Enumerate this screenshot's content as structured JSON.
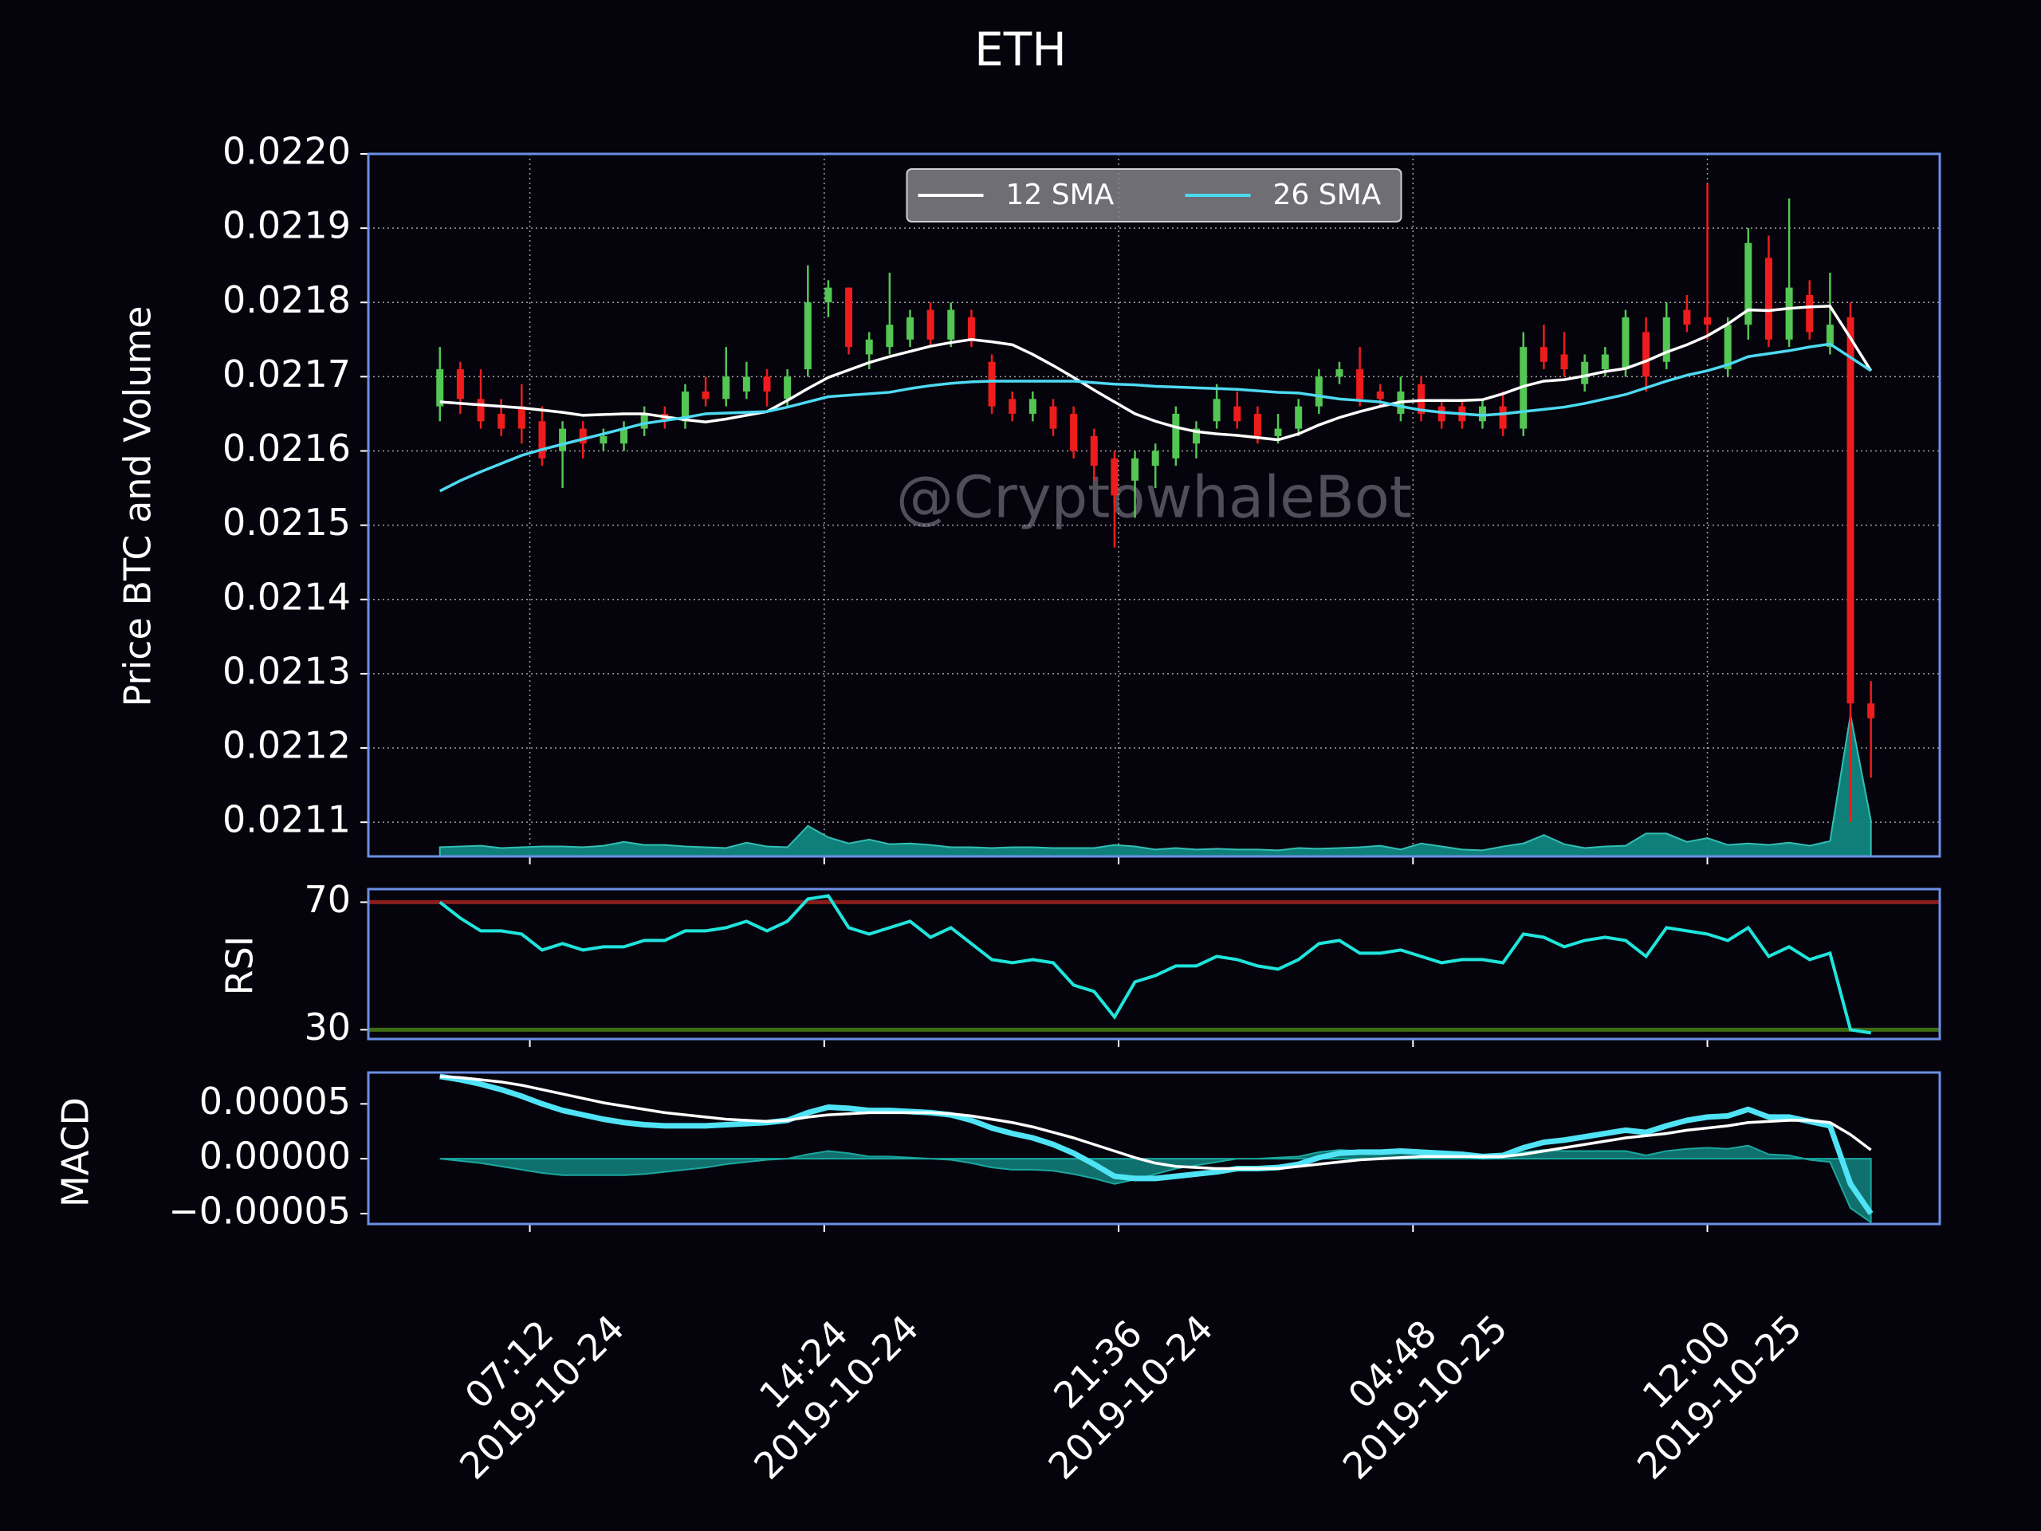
{
  "chart_data": {
    "type": "candlestick",
    "title": "ETH",
    "x": [
      "2019-10-24 05:00",
      "2019-10-24 05:30",
      "2019-10-24 06:00",
      "2019-10-24 06:30",
      "2019-10-24 07:00",
      "2019-10-24 07:30",
      "2019-10-24 08:00",
      "2019-10-24 08:30",
      "2019-10-24 09:00",
      "2019-10-24 09:30",
      "2019-10-24 10:00",
      "2019-10-24 10:30",
      "2019-10-24 11:00",
      "2019-10-24 11:30",
      "2019-10-24 12:00",
      "2019-10-24 12:30",
      "2019-10-24 13:00",
      "2019-10-24 13:30",
      "2019-10-24 14:00",
      "2019-10-24 14:30",
      "2019-10-24 15:00",
      "2019-10-24 15:30",
      "2019-10-24 16:00",
      "2019-10-24 16:30",
      "2019-10-24 17:00",
      "2019-10-24 17:30",
      "2019-10-24 18:00",
      "2019-10-24 18:30",
      "2019-10-24 19:00",
      "2019-10-24 19:30",
      "2019-10-24 20:00",
      "2019-10-24 20:30",
      "2019-10-24 21:00",
      "2019-10-24 21:30",
      "2019-10-24 22:00",
      "2019-10-24 22:30",
      "2019-10-24 23:00",
      "2019-10-24 23:30",
      "2019-10-25 00:00",
      "2019-10-25 00:30",
      "2019-10-25 01:00",
      "2019-10-25 01:30",
      "2019-10-25 02:00",
      "2019-10-25 02:30",
      "2019-10-25 03:00",
      "2019-10-25 03:30",
      "2019-10-25 04:00",
      "2019-10-25 04:30",
      "2019-10-25 05:00",
      "2019-10-25 05:30",
      "2019-10-25 06:00",
      "2019-10-25 06:30",
      "2019-10-25 07:00",
      "2019-10-25 07:30",
      "2019-10-25 08:00",
      "2019-10-25 08:30",
      "2019-10-25 09:00",
      "2019-10-25 09:30",
      "2019-10-25 10:00",
      "2019-10-25 10:30",
      "2019-10-25 11:00",
      "2019-10-25 11:30",
      "2019-10-25 12:00",
      "2019-10-25 12:30",
      "2019-10-25 13:00",
      "2019-10-25 13:30",
      "2019-10-25 14:00",
      "2019-10-25 14:30",
      "2019-10-25 15:00",
      "2019-10-25 15:30",
      "2019-10-25 16:00"
    ],
    "xlim": [
      "2019-10-24 03:15",
      "2019-10-25 17:41"
    ],
    "xticks": [
      {
        "value": "2019-10-24 07:12",
        "label": [
          "07:12",
          "2019-10-24"
        ]
      },
      {
        "value": "2019-10-24 14:24",
        "label": [
          "14:24",
          "2019-10-24"
        ]
      },
      {
        "value": "2019-10-24 21:36",
        "label": [
          "21:36",
          "2019-10-24"
        ]
      },
      {
        "value": "2019-10-25 04:48",
        "label": [
          "04:48",
          "2019-10-25"
        ]
      },
      {
        "value": "2019-10-25 12:00",
        "label": [
          "12:00",
          "2019-10-25"
        ]
      }
    ],
    "price": {
      "y_label": "Price BTC and Volume",
      "ylim": [
        0.021054,
        0.022
      ],
      "yticks": [
        {
          "value": 0.022,
          "label": "0.0220"
        },
        {
          "value": 0.0219,
          "label": "0.0219"
        },
        {
          "value": 0.0218,
          "label": "0.0218"
        },
        {
          "value": 0.0217,
          "label": "0.0217"
        },
        {
          "value": 0.0216,
          "label": "0.0216"
        },
        {
          "value": 0.0215,
          "label": "0.0215"
        },
        {
          "value": 0.0214,
          "label": "0.0214"
        },
        {
          "value": 0.0213,
          "label": "0.0213"
        },
        {
          "value": 0.0212,
          "label": "0.0212"
        },
        {
          "value": 0.0211,
          "label": "0.0211"
        }
      ],
      "grid": true,
      "up_color": "#53c653",
      "down_color": "#ee1c1c",
      "open": [
        0.02166,
        0.02171,
        0.02167,
        0.02165,
        0.02166,
        0.02164,
        0.0216,
        0.02163,
        0.02161,
        0.02161,
        0.02163,
        0.02165,
        0.02164,
        0.02168,
        0.02167,
        0.02168,
        0.0217,
        0.02167,
        0.02171,
        0.0218,
        0.02182,
        0.02173,
        0.02174,
        0.02175,
        0.02179,
        0.02175,
        0.02178,
        0.02172,
        0.02167,
        0.02165,
        0.02166,
        0.02165,
        0.02162,
        0.02159,
        0.02156,
        0.02158,
        0.02159,
        0.02161,
        0.02164,
        0.02166,
        0.02165,
        0.02162,
        0.02163,
        0.02166,
        0.0217,
        0.02171,
        0.02168,
        0.02165,
        0.02169,
        0.02166,
        0.02166,
        0.02164,
        0.02166,
        0.02163,
        0.02174,
        0.02173,
        0.02169,
        0.02171,
        0.02171,
        0.02176,
        0.02172,
        0.02179,
        0.02178,
        0.02171,
        0.02177,
        0.02186,
        0.02175,
        0.02181,
        0.02174,
        0.02178,
        0.02126
      ],
      "high": [
        0.02174,
        0.02172,
        0.02171,
        0.02167,
        0.02169,
        0.02166,
        0.02164,
        0.02164,
        0.02163,
        0.02164,
        0.02166,
        0.02166,
        0.02169,
        0.0217,
        0.02174,
        0.02172,
        0.02171,
        0.02171,
        0.02185,
        0.02183,
        0.02182,
        0.02176,
        0.02184,
        0.02179,
        0.0218,
        0.0218,
        0.02179,
        0.02173,
        0.02168,
        0.02168,
        0.02167,
        0.02166,
        0.02163,
        0.0216,
        0.0216,
        0.02161,
        0.02166,
        0.02164,
        0.02169,
        0.02168,
        0.02166,
        0.02165,
        0.02167,
        0.02171,
        0.02172,
        0.02174,
        0.02169,
        0.0217,
        0.0217,
        0.02167,
        0.02167,
        0.02167,
        0.02168,
        0.02176,
        0.02177,
        0.02176,
        0.02173,
        0.02174,
        0.02179,
        0.02178,
        0.0218,
        0.02181,
        0.02196,
        0.02178,
        0.0219,
        0.02189,
        0.02194,
        0.02183,
        0.02184,
        0.0218,
        0.02129
      ],
      "low": [
        0.02164,
        0.02165,
        0.02163,
        0.02162,
        0.02161,
        0.02158,
        0.02155,
        0.02159,
        0.0216,
        0.0216,
        0.02162,
        0.02163,
        0.02163,
        0.02166,
        0.02166,
        0.02167,
        0.02166,
        0.02166,
        0.0217,
        0.02178,
        0.02173,
        0.02171,
        0.02173,
        0.02174,
        0.02174,
        0.02174,
        0.02174,
        0.02165,
        0.02164,
        0.02164,
        0.02162,
        0.02159,
        0.02156,
        0.02147,
        0.02151,
        0.02155,
        0.02158,
        0.02159,
        0.02163,
        0.02163,
        0.02161,
        0.02161,
        0.02162,
        0.02165,
        0.02169,
        0.02166,
        0.02166,
        0.02164,
        0.02164,
        0.02163,
        0.02163,
        0.02163,
        0.02162,
        0.02162,
        0.02171,
        0.0217,
        0.02168,
        0.0217,
        0.0217,
        0.02168,
        0.02171,
        0.02176,
        0.02175,
        0.0217,
        0.02175,
        0.02174,
        0.02174,
        0.02175,
        0.02173,
        0.0211,
        0.02116
      ],
      "close": [
        0.02171,
        0.02167,
        0.02164,
        0.02163,
        0.02163,
        0.02159,
        0.02163,
        0.02161,
        0.02162,
        0.02163,
        0.02165,
        0.02164,
        0.02168,
        0.02167,
        0.0217,
        0.0217,
        0.02168,
        0.0217,
        0.0218,
        0.02182,
        0.02174,
        0.02175,
        0.02177,
        0.02178,
        0.02175,
        0.02179,
        0.02175,
        0.02166,
        0.02165,
        0.02167,
        0.02163,
        0.0216,
        0.02158,
        0.02154,
        0.02159,
        0.0216,
        0.02165,
        0.02163,
        0.02167,
        0.02164,
        0.02162,
        0.02163,
        0.02166,
        0.0217,
        0.02171,
        0.02167,
        0.02167,
        0.02168,
        0.02165,
        0.02164,
        0.02164,
        0.02166,
        0.02163,
        0.02174,
        0.02172,
        0.02171,
        0.02172,
        0.02173,
        0.02178,
        0.0217,
        0.02178,
        0.02177,
        0.02177,
        0.02177,
        0.02188,
        0.02175,
        0.02182,
        0.02176,
        0.02177,
        0.02126,
        0.02124
      ],
      "series": [
        {
          "name": "12 SMA",
          "color": "#ffffff",
          "values": [
            0.021666,
            0.021664,
            0.021662,
            0.02166,
            0.021658,
            0.021655,
            0.021652,
            0.021648,
            0.021649,
            0.02165,
            0.02165,
            0.021646,
            0.021642,
            0.021639,
            0.021643,
            0.021648,
            0.021653,
            0.021668,
            0.021684,
            0.021699,
            0.021709,
            0.021719,
            0.021727,
            0.021734,
            0.021741,
            0.021746,
            0.02175,
            0.021747,
            0.021743,
            0.02173,
            0.021715,
            0.021699,
            0.021682,
            0.021666,
            0.02165,
            0.02164,
            0.021632,
            0.021626,
            0.021623,
            0.021621,
            0.021618,
            0.021615,
            0.021623,
            0.021635,
            0.021645,
            0.021653,
            0.02166,
            0.021666,
            0.021668,
            0.021668,
            0.021668,
            0.021669,
            0.021677,
            0.021687,
            0.021694,
            0.021696,
            0.021701,
            0.021707,
            0.021711,
            0.021721,
            0.021733,
            0.021743,
            0.021755,
            0.021771,
            0.02179,
            0.021789,
            0.021792,
            0.021794,
            0.021795,
            0.021752,
            0.021708
          ]
        },
        {
          "name": "26 SMA",
          "color": "#4ed9f2",
          "values": [
            0.021546,
            0.02156,
            0.021572,
            0.021583,
            0.021594,
            0.021602,
            0.021609,
            0.021616,
            0.021623,
            0.02163,
            0.021637,
            0.021641,
            0.021645,
            0.02165,
            0.021651,
            0.021652,
            0.021653,
            0.021659,
            0.021666,
            0.021673,
            0.021675,
            0.021677,
            0.021679,
            0.021684,
            0.021688,
            0.021691,
            0.021693,
            0.021694,
            0.021694,
            0.021694,
            0.021694,
            0.021694,
            0.021692,
            0.02169,
            0.021689,
            0.021687,
            0.021686,
            0.021685,
            0.021684,
            0.021683,
            0.021681,
            0.021679,
            0.021678,
            0.021674,
            0.02167,
            0.021668,
            0.021666,
            0.02166,
            0.021655,
            0.021652,
            0.02165,
            0.021648,
            0.02165,
            0.021653,
            0.021656,
            0.021659,
            0.021664,
            0.02167,
            0.021676,
            0.021685,
            0.021694,
            0.021702,
            0.021708,
            0.021716,
            0.021727,
            0.021731,
            0.021735,
            0.02174,
            0.021744,
            0.021726,
            0.021708
          ]
        }
      ],
      "legend": "upper center",
      "volume": {
        "color": "#10877f",
        "y2lim": [
          0,
          92
        ],
        "values": [
          1.2,
          1.3,
          1.4,
          1.1,
          1.2,
          1.3,
          1.3,
          1.2,
          1.4,
          1.9,
          1.5,
          1.5,
          1.3,
          1.2,
          1.1,
          1.8,
          1.3,
          1.2,
          4.0,
          2.5,
          1.7,
          2.2,
          1.6,
          1.7,
          1.5,
          1.2,
          1.2,
          1.1,
          1.2,
          1.2,
          1.1,
          1.1,
          1.1,
          1.5,
          1.3,
          0.9,
          1.1,
          0.9,
          1.0,
          0.9,
          0.9,
          0.8,
          1.1,
          1.0,
          1.1,
          1.2,
          1.4,
          0.9,
          1.7,
          1.3,
          0.9,
          0.8,
          1.3,
          1.7,
          2.8,
          1.6,
          1.1,
          1.3,
          1.4,
          3.0,
          3.0,
          1.9,
          2.4,
          1.5,
          1.7,
          1.5,
          1.8,
          1.4,
          2.0,
          18.5,
          4.7
        ]
      },
      "watermark": "@CryptowhaleBot"
    },
    "rsi": {
      "y_label": "RSI",
      "ylim": [
        27.1,
        74.1
      ],
      "yticks": [
        70,
        30
      ],
      "levels": [
        {
          "value": 70,
          "color": "#8b1d1d"
        },
        {
          "value": 30,
          "color": "#3d6b14"
        }
      ],
      "series": [
        {
          "color": "#1fe5dc",
          "values": [
            70,
            65,
            61,
            61,
            60,
            55,
            57,
            55,
            56,
            56,
            58,
            58,
            61,
            61,
            62,
            64,
            61,
            64,
            71,
            72,
            62,
            60,
            62,
            64,
            59,
            62,
            57,
            52,
            51,
            52,
            51,
            44,
            42,
            34,
            45,
            47,
            50,
            50,
            53,
            52,
            50,
            49,
            52,
            57,
            58,
            54,
            54,
            55,
            53,
            51,
            52,
            52,
            51,
            60,
            59,
            56,
            58,
            59,
            58,
            53,
            62,
            61,
            60,
            58,
            62,
            53,
            56,
            52,
            54,
            30,
            29
          ]
        }
      ]
    },
    "macd": {
      "y_label": "MACD",
      "ylim": [
        -5.95e-05,
        7.86e-05
      ],
      "yticks": [
        {
          "value": 5e-05,
          "label": "0.00005"
        },
        {
          "value": 0,
          "label": "0.00000"
        },
        {
          "value": -5e-05,
          "label": "−0.00005"
        }
      ],
      "series": [
        {
          "color": "#4fe3f5",
          "values": [
            7.5e-05,
            7.2e-05,
            6.8e-05,
            6.3e-05,
            5.7e-05,
            5e-05,
            4.4e-05,
            4e-05,
            3.6e-05,
            3.3e-05,
            3.1e-05,
            3e-05,
            3e-05,
            3e-05,
            3.1e-05,
            3.2e-05,
            3.3e-05,
            3.5e-05,
            4.2e-05,
            4.7e-05,
            4.6e-05,
            4.4e-05,
            4.4e-05,
            4.3e-05,
            4.2e-05,
            4e-05,
            3.5e-05,
            2.8e-05,
            2.3e-05,
            1.9e-05,
            1.3e-05,
            5e-06,
            -5e-06,
            -1.6e-05,
            -1.8e-05,
            -1.8e-05,
            -1.6e-05,
            -1.4e-05,
            -1.2e-05,
            -9e-06,
            -9e-06,
            -8e-06,
            -5e-06,
            1e-06,
            5e-06,
            6e-06,
            6e-06,
            7e-06,
            6e-06,
            5e-06,
            4e-06,
            2e-06,
            3e-06,
            1e-05,
            1.5e-05,
            1.7e-05,
            2e-05,
            2.3e-05,
            2.6e-05,
            2.4e-05,
            3e-05,
            3.5e-05,
            3.8e-05,
            3.9e-05,
            4.5e-05,
            3.8e-05,
            3.8e-05,
            3.4e-05,
            3e-05,
            -2.3e-05,
            -5e-05
          ]
        },
        {
          "color": "#ffffff",
          "values": [
            7.5e-05,
            7.4e-05,
            7.2e-05,
            7e-05,
            6.7e-05,
            6.3e-05,
            5.9e-05,
            5.5e-05,
            5.1e-05,
            4.8e-05,
            4.5e-05,
            4.2e-05,
            4e-05,
            3.8e-05,
            3.6e-05,
            3.5e-05,
            3.4e-05,
            3.5e-05,
            3.8e-05,
            4e-05,
            4.1e-05,
            4.2e-05,
            4.2e-05,
            4.2e-05,
            4.2e-05,
            4.1e-05,
            3.9e-05,
            3.6e-05,
            3.3e-05,
            2.9e-05,
            2.4e-05,
            1.9e-05,
            1.3e-05,
            7e-06,
            1e-06,
            -4e-06,
            -7e-06,
            -8e-06,
            -9e-06,
            -9e-06,
            -9e-06,
            -9e-06,
            -7e-06,
            -5e-06,
            -3e-06,
            -1e-06,
            0,
            1e-06,
            2e-06,
            2e-06,
            2e-06,
            2e-06,
            2e-06,
            4e-06,
            7e-06,
            1e-05,
            1.3e-05,
            1.6e-05,
            1.9e-05,
            2.1e-05,
            2.3e-05,
            2.6e-05,
            2.8e-05,
            3e-05,
            3.3e-05,
            3.4e-05,
            3.5e-05,
            3.5e-05,
            3.3e-05,
            2.2e-05,
            8e-06
          ]
        }
      ],
      "histogram": {
        "color": "#128c86",
        "values": [
          0,
          -2e-06,
          -4e-06,
          -7e-06,
          -1e-05,
          -1.3e-05,
          -1.5e-05,
          -1.5e-05,
          -1.5e-05,
          -1.5e-05,
          -1.4e-05,
          -1.2e-05,
          -1e-05,
          -8e-06,
          -5e-06,
          -3e-06,
          -1e-06,
          0,
          4e-06,
          7e-06,
          5e-06,
          2e-06,
          2e-06,
          1e-06,
          0,
          -1e-06,
          -4e-06,
          -8e-06,
          -1e-05,
          -1e-05,
          -1.1e-05,
          -1.4e-05,
          -1.8e-05,
          -2.3e-05,
          -1.9e-05,
          -1.4e-05,
          -9e-06,
          -6e-06,
          -3e-06,
          0,
          0,
          1e-06,
          2e-06,
          6e-06,
          8e-06,
          7e-06,
          6e-06,
          6e-06,
          4e-06,
          3e-06,
          2e-06,
          0,
          1e-06,
          6e-06,
          8e-06,
          7e-06,
          7e-06,
          7e-06,
          7e-06,
          3e-06,
          7e-06,
          9e-06,
          1e-05,
          9e-06,
          1.2e-05,
          4e-06,
          3e-06,
          -1e-06,
          -3e-06,
          -4.5e-05,
          -5.8e-05
        ]
      }
    }
  }
}
